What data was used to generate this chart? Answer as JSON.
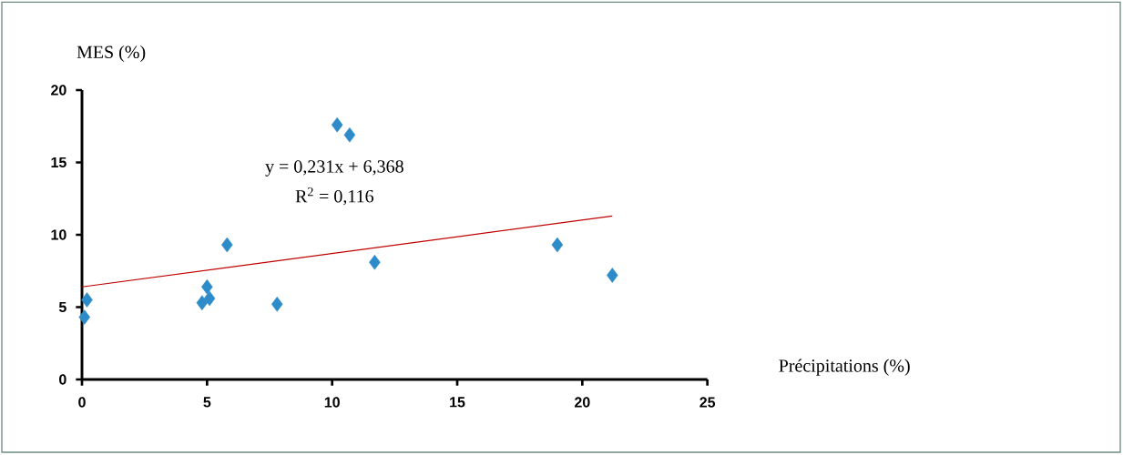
{
  "chart_data": {
    "type": "scatter",
    "xlabel": "Précipitations (%)",
    "ylabel": "MES (%)",
    "annotations": [
      "y = 0,231x + 6,368",
      "R$^{2}$ = 0,116"
    ],
    "series": [
      {
        "color": "#2e8bc9",
        "marker": "diamond",
        "x": [
          0.1,
          0.2,
          4.8,
          5.0,
          5.1,
          5.8,
          7.8,
          10.2,
          10.7,
          11.7,
          19.0,
          21.2
        ],
        "values": [
          4.3,
          5.5,
          5.3,
          6.4,
          5.6,
          9.3,
          5.2,
          17.6,
          16.9,
          8.1,
          9.3,
          7.2
        ]
      },
      {
        "type": "line",
        "marker": "none",
        "color": "#c00000",
        "x": [
          0,
          21.2
        ],
        "values": [
          6.4,
          11.3
        ]
      }
    ],
    "xlim": [
      0,
      25
    ],
    "ylim": [
      0,
      20
    ],
    "xticks": [
      0,
      5,
      10,
      15,
      20,
      25
    ],
    "yticks": [
      0,
      5,
      10,
      15,
      20
    ]
  }
}
